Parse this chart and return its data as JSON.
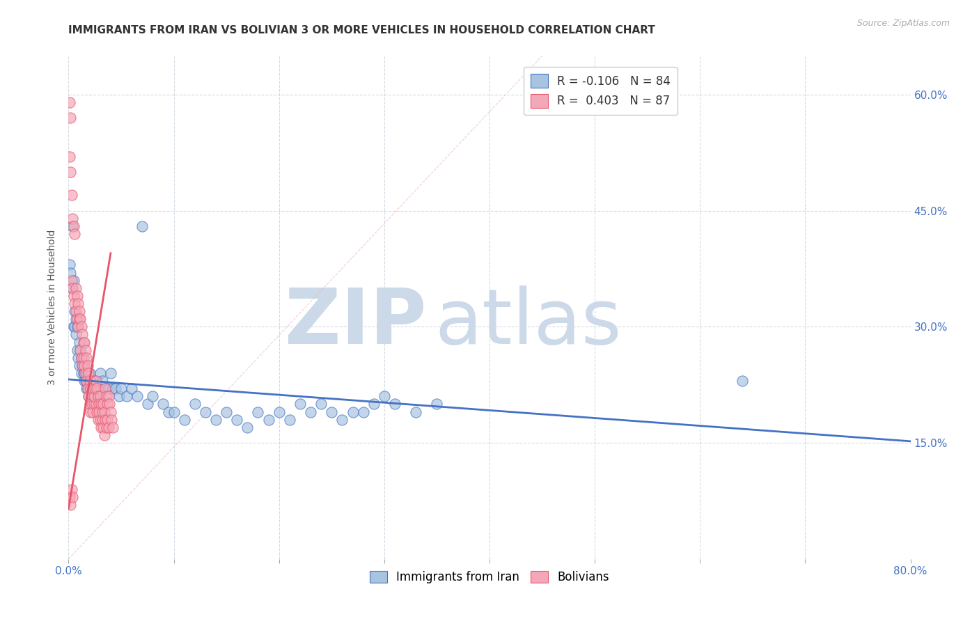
{
  "title": "IMMIGRANTS FROM IRAN VS BOLIVIAN 3 OR MORE VEHICLES IN HOUSEHOLD CORRELATION CHART",
  "source": "Source: ZipAtlas.com",
  "ylabel": "3 or more Vehicles in Household",
  "x_min": 0.0,
  "x_max": 0.8,
  "y_min": 0.0,
  "y_max": 0.65,
  "x_ticks": [
    0.0,
    0.1,
    0.2,
    0.3,
    0.4,
    0.5,
    0.6,
    0.7,
    0.8
  ],
  "x_tick_labels": [
    "0.0%",
    "",
    "",
    "",
    "",
    "",
    "",
    "",
    "80.0%"
  ],
  "y_tick_labels_right": [
    "15.0%",
    "30.0%",
    "45.0%",
    "60.0%"
  ],
  "y_ticks_right": [
    0.15,
    0.3,
    0.45,
    0.6
  ],
  "legend_label_blue": "Immigrants from Iran",
  "legend_label_pink": "Bolivians",
  "r_blue": "-0.106",
  "n_blue": "84",
  "r_pink": "0.403",
  "n_pink": "87",
  "blue_color": "#a8c4e0",
  "pink_color": "#f4a7b9",
  "blue_line_color": "#4472c4",
  "pink_line_color": "#e8546a",
  "watermark_zip_color": "#ccd9e8",
  "watermark_atlas_color": "#ccd9e8",
  "grid_color": "#d0d8e0",
  "title_color": "#333333",
  "blue_scatter": [
    [
      0.001,
      0.38
    ],
    [
      0.002,
      0.37
    ],
    [
      0.003,
      0.35
    ],
    [
      0.004,
      0.43
    ],
    [
      0.005,
      0.36
    ],
    [
      0.005,
      0.3
    ],
    [
      0.006,
      0.3
    ],
    [
      0.007,
      0.29
    ],
    [
      0.006,
      0.32
    ],
    [
      0.007,
      0.31
    ],
    [
      0.008,
      0.3
    ],
    [
      0.008,
      0.27
    ],
    [
      0.009,
      0.26
    ],
    [
      0.01,
      0.25
    ],
    [
      0.01,
      0.28
    ],
    [
      0.011,
      0.27
    ],
    [
      0.012,
      0.26
    ],
    [
      0.012,
      0.24
    ],
    [
      0.013,
      0.25
    ],
    [
      0.014,
      0.24
    ],
    [
      0.015,
      0.23
    ],
    [
      0.016,
      0.24
    ],
    [
      0.017,
      0.22
    ],
    [
      0.014,
      0.25
    ],
    [
      0.015,
      0.24
    ],
    [
      0.016,
      0.23
    ],
    [
      0.018,
      0.22
    ],
    [
      0.019,
      0.21
    ],
    [
      0.02,
      0.22
    ],
    [
      0.018,
      0.24
    ],
    [
      0.019,
      0.23
    ],
    [
      0.02,
      0.24
    ],
    [
      0.021,
      0.23
    ],
    [
      0.022,
      0.22
    ],
    [
      0.023,
      0.21
    ],
    [
      0.024,
      0.22
    ],
    [
      0.025,
      0.23
    ],
    [
      0.026,
      0.22
    ],
    [
      0.027,
      0.21
    ],
    [
      0.028,
      0.22
    ],
    [
      0.029,
      0.2
    ],
    [
      0.03,
      0.24
    ],
    [
      0.032,
      0.23
    ],
    [
      0.035,
      0.22
    ],
    [
      0.038,
      0.22
    ],
    [
      0.04,
      0.24
    ],
    [
      0.042,
      0.22
    ],
    [
      0.045,
      0.22
    ],
    [
      0.048,
      0.21
    ],
    [
      0.05,
      0.22
    ],
    [
      0.055,
      0.21
    ],
    [
      0.06,
      0.22
    ],
    [
      0.065,
      0.21
    ],
    [
      0.07,
      0.43
    ],
    [
      0.075,
      0.2
    ],
    [
      0.08,
      0.21
    ],
    [
      0.09,
      0.2
    ],
    [
      0.095,
      0.19
    ],
    [
      0.1,
      0.19
    ],
    [
      0.11,
      0.18
    ],
    [
      0.12,
      0.2
    ],
    [
      0.13,
      0.19
    ],
    [
      0.14,
      0.18
    ],
    [
      0.15,
      0.19
    ],
    [
      0.16,
      0.18
    ],
    [
      0.17,
      0.17
    ],
    [
      0.18,
      0.19
    ],
    [
      0.19,
      0.18
    ],
    [
      0.2,
      0.19
    ],
    [
      0.21,
      0.18
    ],
    [
      0.22,
      0.2
    ],
    [
      0.23,
      0.19
    ],
    [
      0.24,
      0.2
    ],
    [
      0.25,
      0.19
    ],
    [
      0.26,
      0.18
    ],
    [
      0.27,
      0.19
    ],
    [
      0.28,
      0.19
    ],
    [
      0.29,
      0.2
    ],
    [
      0.3,
      0.21
    ],
    [
      0.31,
      0.2
    ],
    [
      0.33,
      0.19
    ],
    [
      0.35,
      0.2
    ],
    [
      0.64,
      0.23
    ]
  ],
  "pink_scatter": [
    [
      0.001,
      0.59
    ],
    [
      0.002,
      0.57
    ],
    [
      0.001,
      0.52
    ],
    [
      0.002,
      0.5
    ],
    [
      0.003,
      0.47
    ],
    [
      0.004,
      0.44
    ],
    [
      0.005,
      0.43
    ],
    [
      0.006,
      0.42
    ],
    [
      0.003,
      0.36
    ],
    [
      0.004,
      0.35
    ],
    [
      0.005,
      0.34
    ],
    [
      0.006,
      0.33
    ],
    [
      0.007,
      0.32
    ],
    [
      0.008,
      0.31
    ],
    [
      0.009,
      0.3
    ],
    [
      0.01,
      0.31
    ],
    [
      0.007,
      0.35
    ],
    [
      0.008,
      0.34
    ],
    [
      0.009,
      0.33
    ],
    [
      0.01,
      0.32
    ],
    [
      0.011,
      0.31
    ],
    [
      0.012,
      0.3
    ],
    [
      0.013,
      0.29
    ],
    [
      0.014,
      0.28
    ],
    [
      0.011,
      0.27
    ],
    [
      0.012,
      0.26
    ],
    [
      0.013,
      0.25
    ],
    [
      0.014,
      0.26
    ],
    [
      0.015,
      0.25
    ],
    [
      0.016,
      0.24
    ],
    [
      0.017,
      0.23
    ],
    [
      0.018,
      0.22
    ],
    [
      0.015,
      0.28
    ],
    [
      0.016,
      0.27
    ],
    [
      0.017,
      0.26
    ],
    [
      0.018,
      0.25
    ],
    [
      0.019,
      0.24
    ],
    [
      0.02,
      0.23
    ],
    [
      0.021,
      0.22
    ],
    [
      0.022,
      0.21
    ],
    [
      0.019,
      0.21
    ],
    [
      0.02,
      0.2
    ],
    [
      0.021,
      0.19
    ],
    [
      0.022,
      0.2
    ],
    [
      0.023,
      0.19
    ],
    [
      0.024,
      0.2
    ],
    [
      0.025,
      0.21
    ],
    [
      0.026,
      0.2
    ],
    [
      0.023,
      0.22
    ],
    [
      0.024,
      0.21
    ],
    [
      0.025,
      0.22
    ],
    [
      0.026,
      0.23
    ],
    [
      0.027,
      0.22
    ],
    [
      0.028,
      0.21
    ],
    [
      0.029,
      0.2
    ],
    [
      0.03,
      0.21
    ],
    [
      0.027,
      0.19
    ],
    [
      0.028,
      0.18
    ],
    [
      0.029,
      0.19
    ],
    [
      0.03,
      0.18
    ],
    [
      0.031,
      0.17
    ],
    [
      0.032,
      0.18
    ],
    [
      0.033,
      0.17
    ],
    [
      0.034,
      0.16
    ],
    [
      0.031,
      0.2
    ],
    [
      0.032,
      0.19
    ],
    [
      0.033,
      0.2
    ],
    [
      0.034,
      0.19
    ],
    [
      0.035,
      0.18
    ],
    [
      0.036,
      0.17
    ],
    [
      0.037,
      0.18
    ],
    [
      0.038,
      0.17
    ],
    [
      0.035,
      0.22
    ],
    [
      0.036,
      0.21
    ],
    [
      0.037,
      0.2
    ],
    [
      0.038,
      0.21
    ],
    [
      0.039,
      0.2
    ],
    [
      0.04,
      0.19
    ],
    [
      0.001,
      0.08
    ],
    [
      0.002,
      0.07
    ],
    [
      0.003,
      0.09
    ],
    [
      0.004,
      0.08
    ],
    [
      0.041,
      0.18
    ],
    [
      0.042,
      0.17
    ]
  ]
}
